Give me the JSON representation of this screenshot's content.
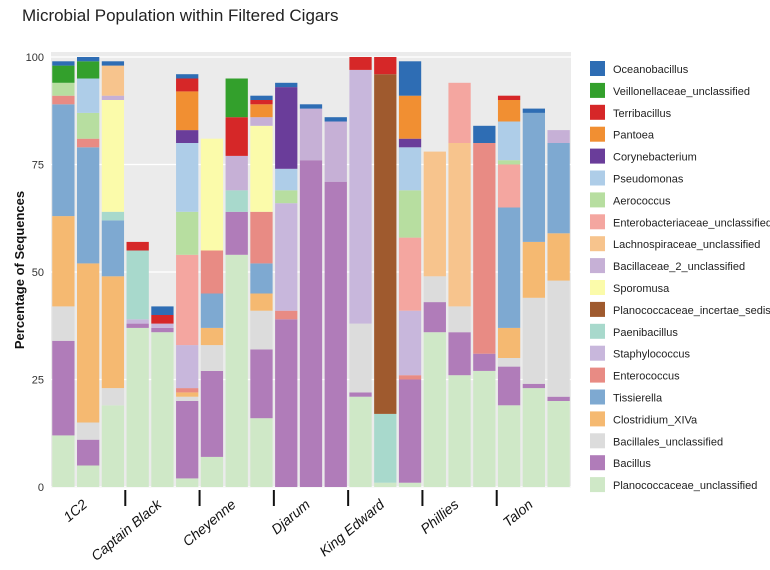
{
  "chart_data": {
    "type": "bar",
    "stacked": true,
    "title": "Microbial Population within Filtered Cigars",
    "ylabel": "Percentage of Sequences",
    "xlabel": "",
    "ylim": [
      0,
      100
    ],
    "yticks": [
      0,
      25,
      50,
      75,
      100
    ],
    "grid": true,
    "legend_position": "right",
    "groups": [
      {
        "name": "1C2",
        "bars": 3
      },
      {
        "name": "Captain Black",
        "bars": 3
      },
      {
        "name": "Cheyenne",
        "bars": 3
      },
      {
        "name": "Djarum",
        "bars": 3
      },
      {
        "name": "King Edward",
        "bars": 3
      },
      {
        "name": "Phillies",
        "bars": 3
      },
      {
        "name": "Talon",
        "bars": 3
      }
    ],
    "series": [
      {
        "name": "Planococcaceae_unclassified",
        "color": "#cfe8c7",
        "values": [
          12,
          5,
          19,
          37,
          36,
          2,
          7,
          54,
          16,
          0,
          0,
          0,
          21,
          1,
          1,
          36,
          26,
          27,
          19,
          23,
          20
        ]
      },
      {
        "name": "Bacillus",
        "color": "#b07cb9",
        "values": [
          22,
          6,
          0,
          1,
          1,
          18,
          20,
          10,
          16,
          39,
          76,
          71,
          1,
          0,
          24,
          7,
          10,
          4,
          9,
          1,
          1
        ]
      },
      {
        "name": "Bacillales_unclassified",
        "color": "#dcdcdc",
        "values": [
          8,
          4,
          4,
          0,
          0,
          1,
          6,
          0,
          9,
          0,
          0,
          0,
          16,
          0,
          0,
          6,
          6,
          0,
          2,
          20,
          27
        ]
      },
      {
        "name": "Clostridium_XIVa",
        "color": "#f5b971",
        "values": [
          21,
          37,
          26,
          0,
          0,
          1,
          4,
          0,
          4,
          0,
          0,
          0,
          0,
          0,
          0,
          0,
          0,
          0,
          7,
          13,
          11
        ]
      },
      {
        "name": "Tissierella",
        "color": "#7ea9d1",
        "values": [
          26,
          27,
          13,
          0,
          0,
          0,
          8,
          0,
          7,
          0,
          0,
          0,
          0,
          0,
          0,
          0,
          0,
          0,
          28,
          30,
          21
        ]
      },
      {
        "name": "Enterococcus",
        "color": "#e88b84",
        "values": [
          2,
          2,
          0,
          0,
          0,
          1,
          10,
          0,
          12,
          2,
          0,
          0,
          0,
          0,
          1,
          0,
          0,
          49,
          0,
          0,
          0
        ]
      },
      {
        "name": "Staphylococcus",
        "color": "#c8b7dc",
        "values": [
          0,
          0,
          0,
          1,
          1,
          10,
          0,
          0,
          0,
          25,
          0,
          0,
          59,
          0,
          15,
          0,
          0,
          0,
          0,
          0,
          0
        ]
      },
      {
        "name": "Paenibacillus",
        "color": "#a8d9cc",
        "values": [
          0,
          0,
          2,
          16,
          0,
          0,
          0,
          5,
          0,
          0,
          0,
          0,
          0,
          16,
          0,
          0,
          0,
          0,
          0,
          0,
          0
        ]
      },
      {
        "name": "Planococcaceae_incertae_sedis",
        "color": "#9f5a2e",
        "values": [
          0,
          0,
          0,
          0,
          0,
          0,
          0,
          0,
          0,
          0,
          0,
          0,
          0,
          79,
          0,
          0,
          0,
          0,
          0,
          0,
          0
        ]
      },
      {
        "name": "Sporomusa",
        "color": "#fbfbaa",
        "values": [
          0,
          0,
          26,
          0,
          0,
          0,
          26,
          0,
          20,
          0,
          0,
          0,
          0,
          0,
          0,
          0,
          0,
          0,
          0,
          0,
          0
        ]
      },
      {
        "name": "Bacillaceae_2_unclassified",
        "color": "#c6b0d6",
        "values": [
          0,
          0,
          1,
          0,
          0,
          0,
          0,
          8,
          2,
          0,
          12,
          14,
          0,
          0,
          0,
          0,
          0,
          0,
          0,
          0,
          3
        ]
      },
      {
        "name": "Lachnospiraceae_unclassified",
        "color": "#f7c48d",
        "values": [
          0,
          0,
          7,
          0,
          0,
          0,
          0,
          0,
          0,
          0,
          0,
          0,
          0,
          0,
          0,
          29,
          38,
          0,
          0,
          0,
          0
        ]
      },
      {
        "name": "Enterobacteriaceae_unclassified",
        "color": "#f4a6a0",
        "values": [
          0,
          0,
          0,
          0,
          0,
          21,
          0,
          0,
          0,
          0,
          0,
          0,
          0,
          0,
          17,
          0,
          14,
          0,
          10,
          0,
          0
        ]
      },
      {
        "name": "Aerococcus",
        "color": "#b7dea0",
        "values": [
          3,
          6,
          0,
          0,
          0,
          10,
          0,
          0,
          0,
          3,
          0,
          0,
          0,
          0,
          11,
          0,
          0,
          0,
          1,
          0,
          0
        ]
      },
      {
        "name": "Pseudomonas",
        "color": "#aecde8",
        "values": [
          0,
          8,
          0,
          0,
          0,
          16,
          0,
          0,
          0,
          5,
          0,
          0,
          0,
          0,
          10,
          0,
          0,
          0,
          9,
          0,
          0
        ]
      },
      {
        "name": "Corynebacterium",
        "color": "#6a3d9a",
        "values": [
          0,
          0,
          0,
          0,
          0,
          3,
          0,
          0,
          0,
          19,
          0,
          0,
          0,
          0,
          2,
          0,
          0,
          0,
          0,
          0,
          0
        ]
      },
      {
        "name": "Pantoea",
        "color": "#f18f32",
        "values": [
          0,
          0,
          0,
          0,
          0,
          9,
          0,
          0,
          3,
          0,
          0,
          0,
          0,
          0,
          10,
          0,
          0,
          0,
          5,
          0,
          0
        ]
      },
      {
        "name": "Terribacillus",
        "color": "#d62728",
        "values": [
          0,
          0,
          0,
          2,
          2,
          3,
          0,
          9,
          1,
          0,
          0,
          0,
          3,
          4,
          0,
          0,
          0,
          0,
          1,
          0,
          0
        ]
      },
      {
        "name": "Veillonellaceae_unclassified",
        "color": "#33a02c",
        "values": [
          4,
          4,
          0,
          0,
          0,
          0,
          0,
          9,
          0,
          0,
          0,
          0,
          0,
          0,
          0,
          0,
          0,
          0,
          0,
          0,
          0
        ]
      },
      {
        "name": "Oceanobacillus",
        "color": "#2e6db4",
        "values": [
          1,
          1,
          1,
          0,
          2,
          1,
          0,
          0,
          1,
          1,
          1,
          1,
          0,
          0,
          8,
          0,
          0,
          4,
          0,
          1,
          0
        ]
      }
    ]
  }
}
